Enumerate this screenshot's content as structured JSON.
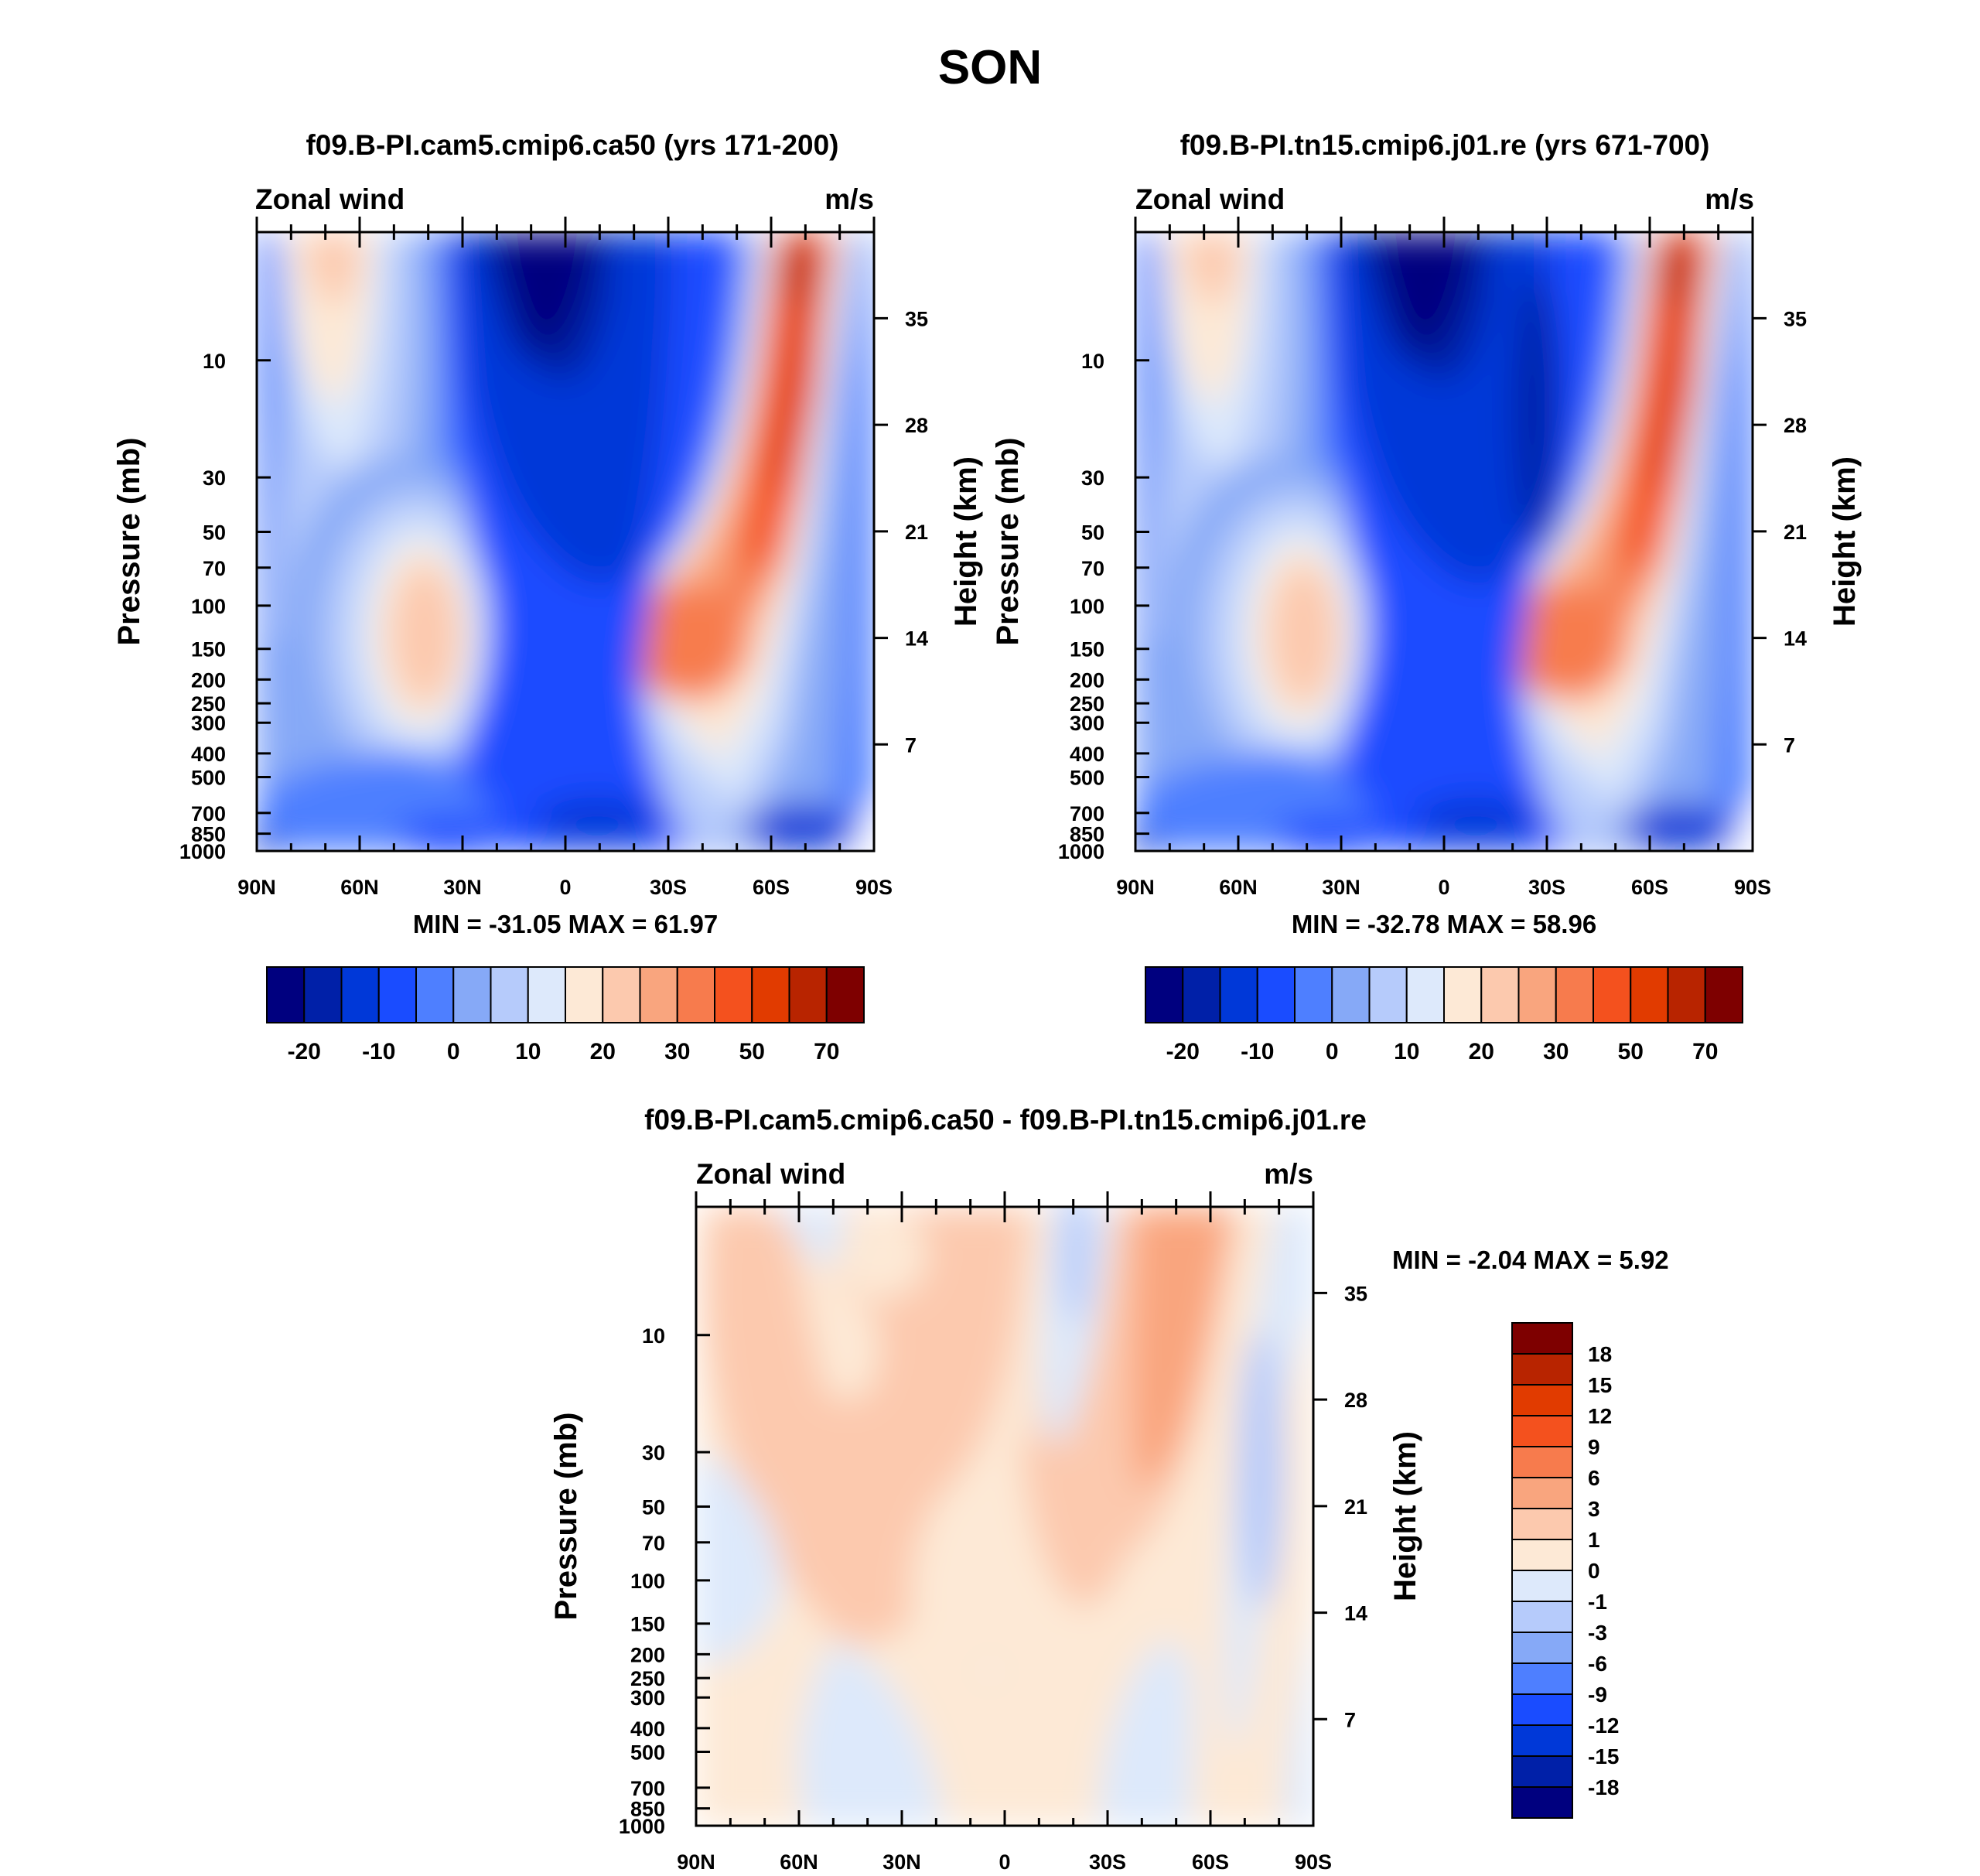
{
  "title": "SON",
  "colors": {
    "main": [
      "#00007f",
      "#0020a8",
      "#0038d8",
      "#1a4cff",
      "#4e7fff",
      "#86a9f7",
      "#b6cbfb",
      "#dde9fb",
      "#fde9d6",
      "#fcc9ae",
      "#f9a57e",
      "#f77b4d",
      "#f4511e",
      "#e13b00",
      "#b82400",
      "#7e0000"
    ],
    "diff": [
      "#00007f",
      "#0020a8",
      "#0038d8",
      "#1a4cff",
      "#4e7fff",
      "#86a9f7",
      "#b6cbfb",
      "#dde9fb",
      "#fde9d6",
      "#fcc9ae",
      "#f9a57e",
      "#f77b4d",
      "#f4511e",
      "#e13b00",
      "#b82400",
      "#7e0000"
    ]
  },
  "panels": [
    {
      "id": "case1",
      "title": "f09.B-PI.cam5.cmip6.ca50 (yrs 171-200)",
      "left_label": "Zonal wind",
      "right_label": "m/s",
      "ylabel": "Pressure (mb)",
      "y2label": "Height (km)",
      "stats": "MIN = -31.05  MAX =  61.97",
      "colorbar_labels": [
        "-20",
        "-10",
        "0",
        "10",
        "20",
        "30",
        "50",
        "70"
      ]
    },
    {
      "id": "case2",
      "title": "f09.B-PI.tn15.cmip6.j01.re (yrs 671-700)",
      "left_label": "Zonal wind",
      "right_label": "m/s",
      "ylabel": "Pressure (mb)",
      "y2label": "Height (km)",
      "stats": "MIN = -32.78  MAX =  58.96",
      "colorbar_labels": [
        "-20",
        "-10",
        "0",
        "10",
        "20",
        "30",
        "50",
        "70"
      ]
    },
    {
      "id": "diff",
      "title": "f09.B-PI.cam5.cmip6.ca50 - f09.B-PI.tn15.cmip6.j01.re",
      "left_label": "Zonal wind",
      "right_label": "m/s",
      "ylabel": "Pressure (mb)",
      "y2label": "Height (km)",
      "stats": "MIN =  -2.04  MAX =   5.92",
      "colorbar_labels": [
        "18",
        "15",
        "12",
        "9",
        "6",
        "3",
        "1",
        "0",
        "-1",
        "-3",
        "-6",
        "-9",
        "-12",
        "-15",
        "-18"
      ]
    }
  ],
  "chart_data": [
    {
      "type": "heatmap",
      "title": "f09.B-PI.cam5.cmip6.ca50 (yrs 171-200)",
      "variable": "Zonal wind",
      "units": "m/s",
      "xlabel": "",
      "ylabel": "Pressure (mb)",
      "y2label": "Height (km)",
      "x_ticks": [
        "90N",
        "60N",
        "30N",
        "0",
        "30S",
        "60S",
        "90S"
      ],
      "y_ticks": [
        10,
        30,
        50,
        70,
        100,
        150,
        200,
        250,
        300,
        400,
        500,
        700,
        850,
        1000
      ],
      "y2_ticks": [
        35,
        28,
        21,
        14,
        7
      ],
      "ylim": [
        1000,
        3
      ],
      "levels": [
        -25,
        -20,
        -15,
        -10,
        -5,
        0,
        5,
        10,
        15,
        20,
        25,
        30,
        40,
        50,
        60,
        70,
        80
      ],
      "min": -31.05,
      "max": 61.97
    },
    {
      "type": "heatmap",
      "title": "f09.B-PI.tn15.cmip6.j01.re (yrs 671-700)",
      "variable": "Zonal wind",
      "units": "m/s",
      "xlabel": "",
      "ylabel": "Pressure (mb)",
      "y2label": "Height (km)",
      "x_ticks": [
        "90N",
        "60N",
        "30N",
        "0",
        "30S",
        "60S",
        "90S"
      ],
      "y_ticks": [
        10,
        30,
        50,
        70,
        100,
        150,
        200,
        250,
        300,
        400,
        500,
        700,
        850,
        1000
      ],
      "y2_ticks": [
        35,
        28,
        21,
        14,
        7
      ],
      "ylim": [
        1000,
        3
      ],
      "levels": [
        -25,
        -20,
        -15,
        -10,
        -5,
        0,
        5,
        10,
        15,
        20,
        25,
        30,
        40,
        50,
        60,
        70,
        80
      ],
      "min": -32.78,
      "max": 58.96
    },
    {
      "type": "heatmap",
      "title": "f09.B-PI.cam5.cmip6.ca50 - f09.B-PI.tn15.cmip6.j01.re",
      "variable": "Zonal wind",
      "units": "m/s",
      "xlabel": "",
      "ylabel": "Pressure (mb)",
      "y2label": "Height (km)",
      "x_ticks": [
        "90N",
        "60N",
        "30N",
        "0",
        "30S",
        "60S",
        "90S"
      ],
      "y_ticks": [
        10,
        30,
        50,
        70,
        100,
        150,
        200,
        250,
        300,
        400,
        500,
        700,
        850,
        1000
      ],
      "y2_ticks": [
        35,
        28,
        21,
        14,
        7
      ],
      "ylim": [
        1000,
        3
      ],
      "levels": [
        -21,
        -18,
        -15,
        -12,
        -9,
        -6,
        -3,
        -1,
        0,
        1,
        3,
        6,
        9,
        12,
        15,
        18,
        21
      ],
      "min": -2.04,
      "max": 5.92
    }
  ]
}
